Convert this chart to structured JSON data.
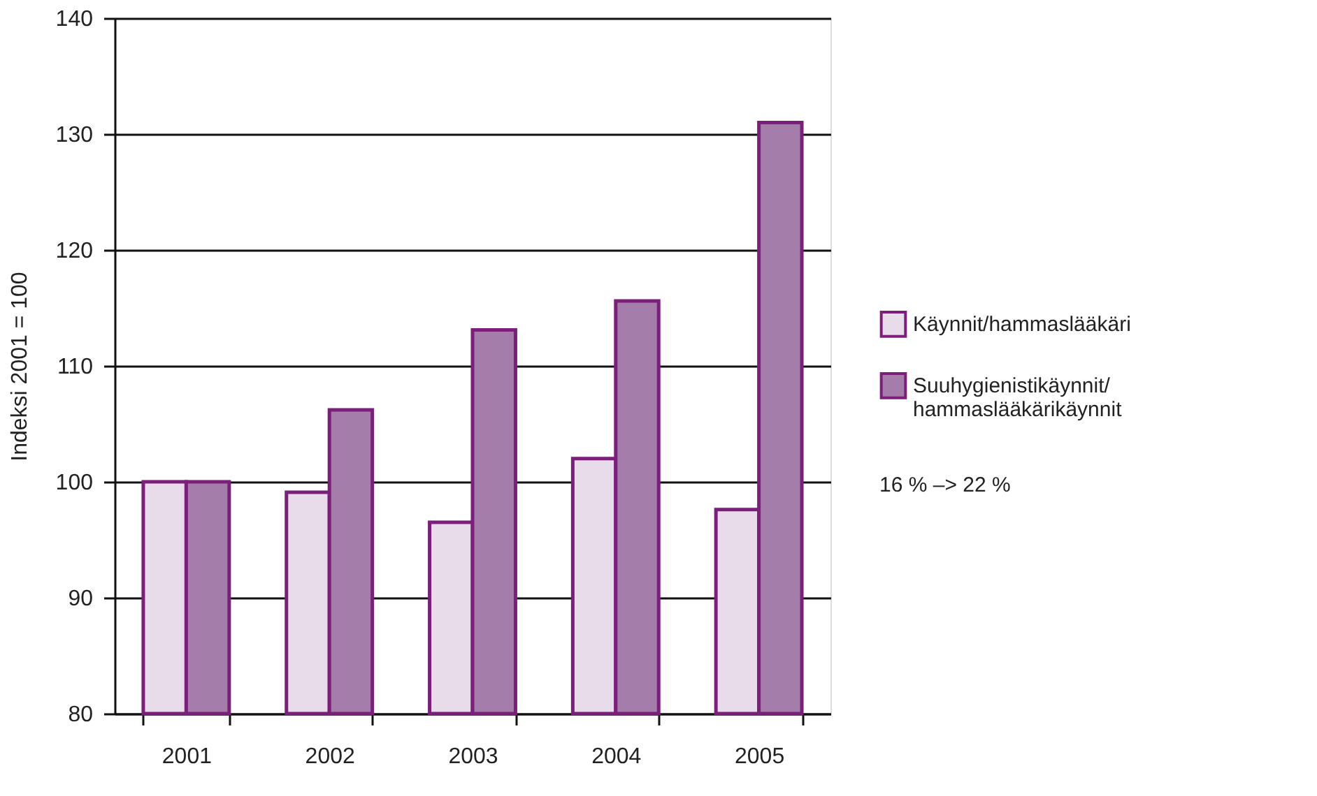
{
  "chart_data": {
    "type": "bar",
    "ylabel": "Indeksi 2001 = 100",
    "categories": [
      "2001",
      "2002",
      "2003",
      "2004",
      "2005"
    ],
    "series": [
      {
        "name": "Käynnit/hammaslääkäri",
        "color": "#e8dcea",
        "values": [
          100,
          99.1,
          96.5,
          102.0,
          97.6
        ]
      },
      {
        "name": "Suuhygienistikäynnit/\nhammaslääkärikäynnit",
        "color": "#a57daa",
        "values": [
          100,
          106.2,
          113.1,
          115.6,
          131.0
        ]
      }
    ],
    "ylim": [
      80,
      140
    ],
    "yticks": [
      80,
      90,
      100,
      110,
      120,
      130,
      140
    ],
    "grid": "y",
    "legend": "right",
    "annotations": [
      "16 % –> 22 %"
    ]
  }
}
